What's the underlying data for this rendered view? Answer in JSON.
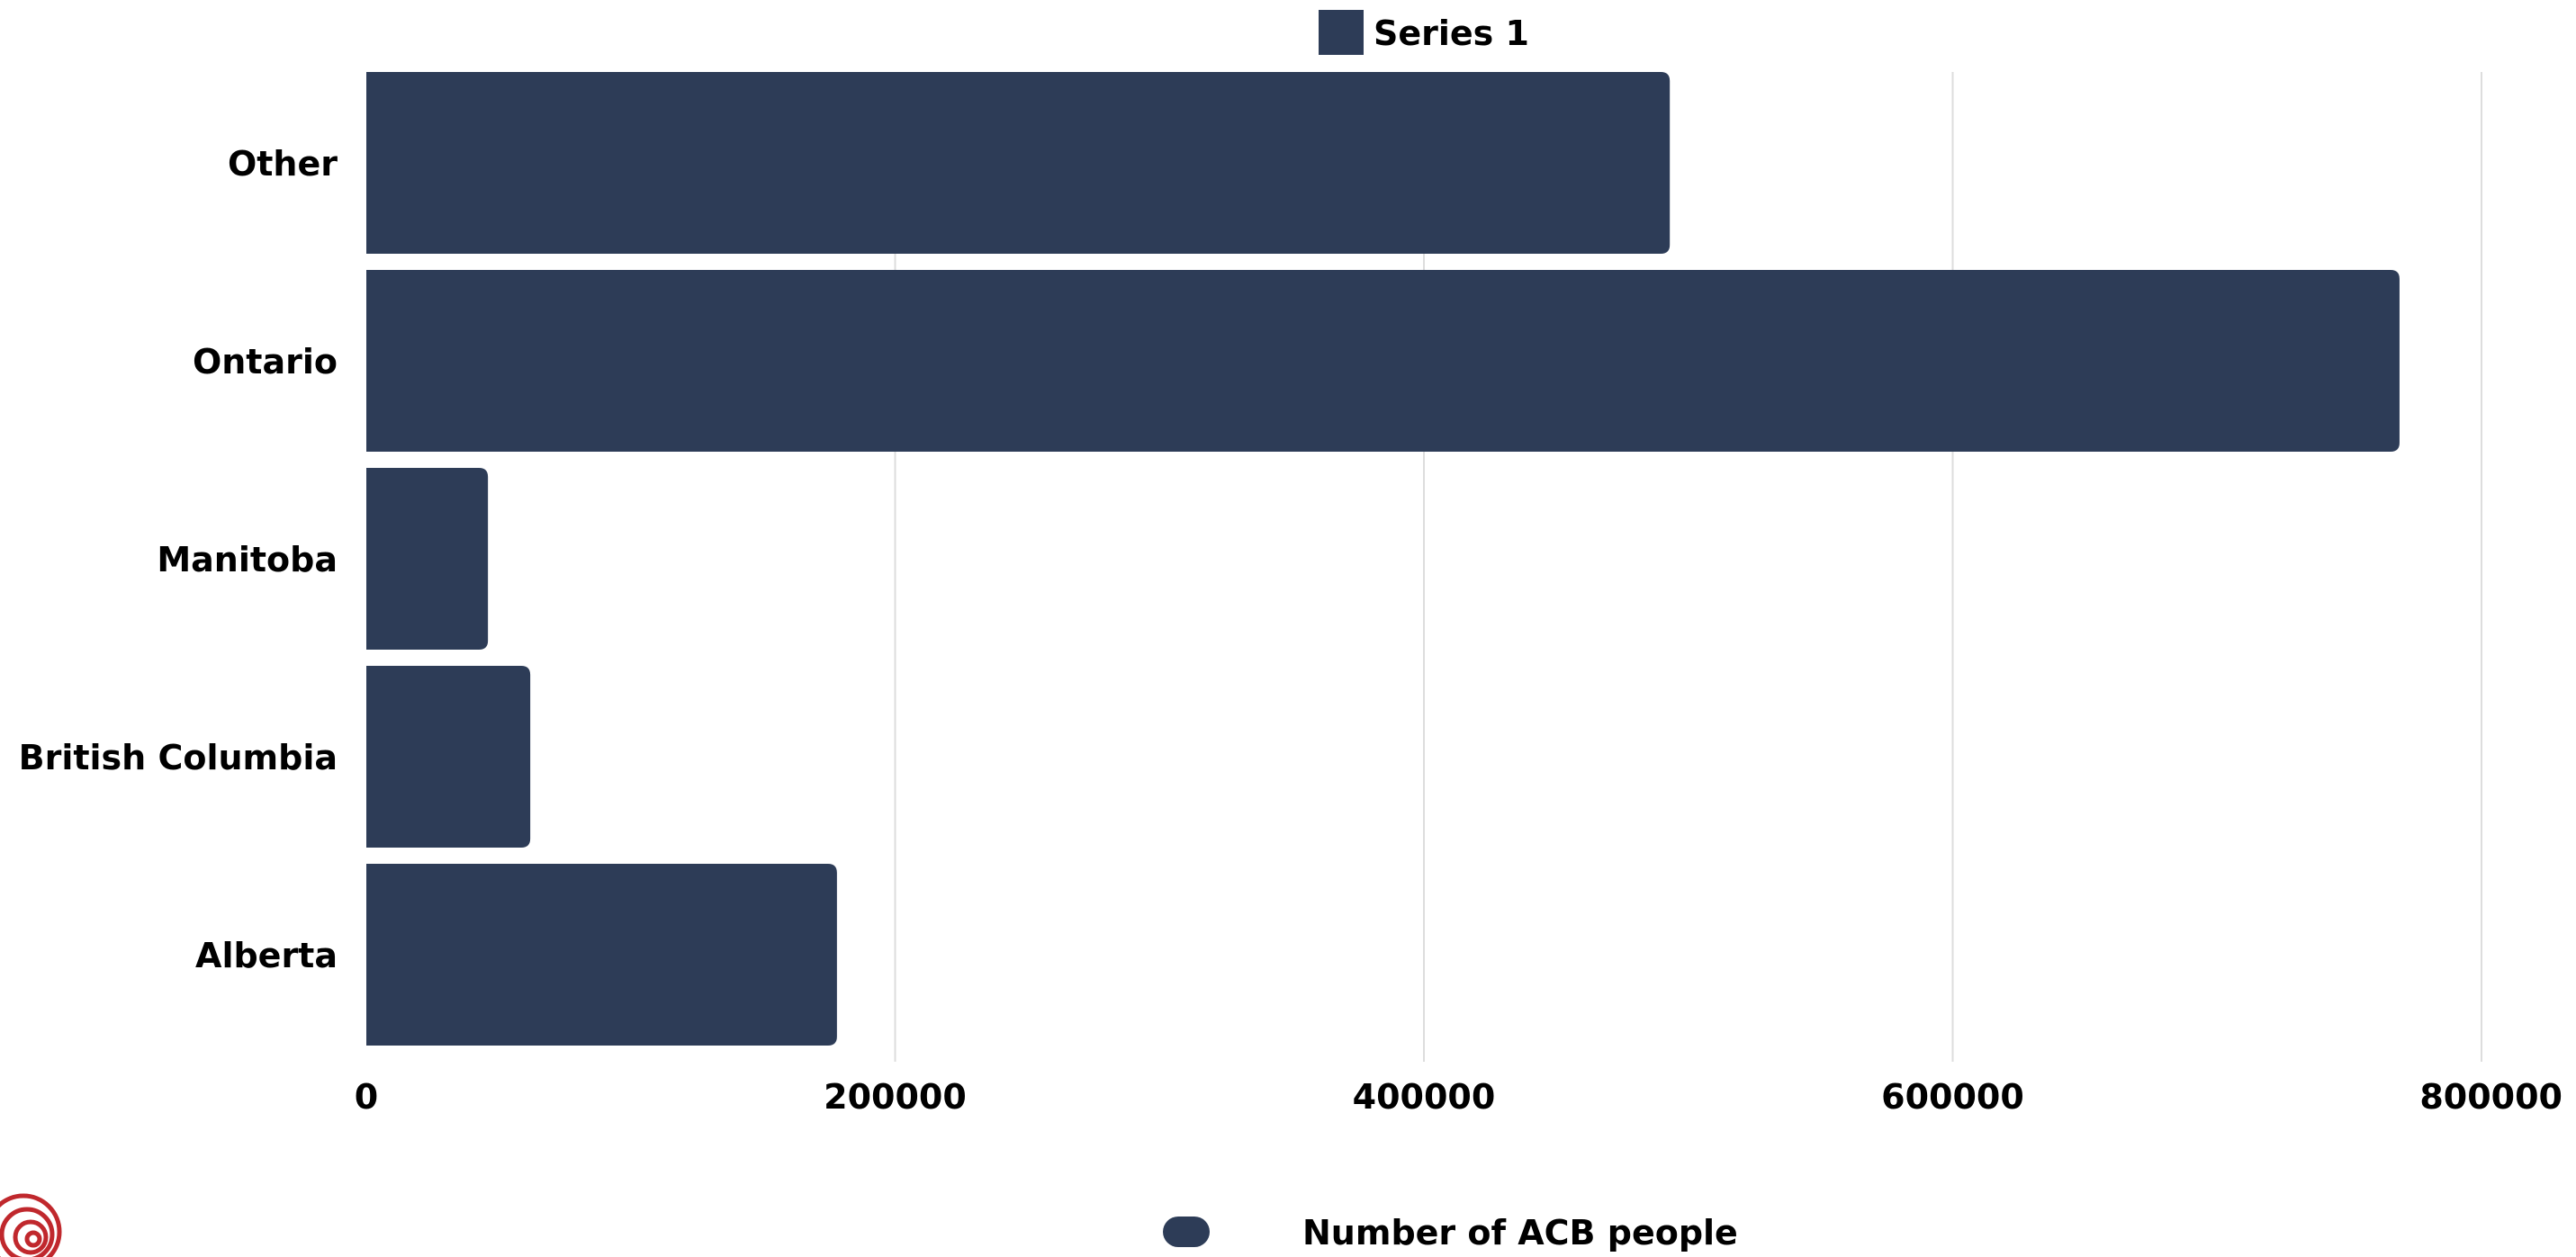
{
  "chart_data": {
    "type": "bar",
    "orientation": "horizontal",
    "categories": [
      "Other",
      "Ontario",
      "Manitoba",
      "British Columbia",
      "Alberta"
    ],
    "series": [
      {
        "name": "Series 1",
        "values": [
          493000,
          769000,
          46000,
          62000,
          178000
        ]
      }
    ],
    "xlim": [
      0,
      800000
    ],
    "xticks": [
      "0",
      "200000",
      "400000",
      "600000",
      "800000"
    ],
    "grid": true,
    "legend_position": "top",
    "bottom_legend_label": "Number of ACB people",
    "bar_color": "#2d3c57"
  },
  "logo": {
    "icon": "spiral-logo-icon",
    "color": "#c0282d"
  }
}
